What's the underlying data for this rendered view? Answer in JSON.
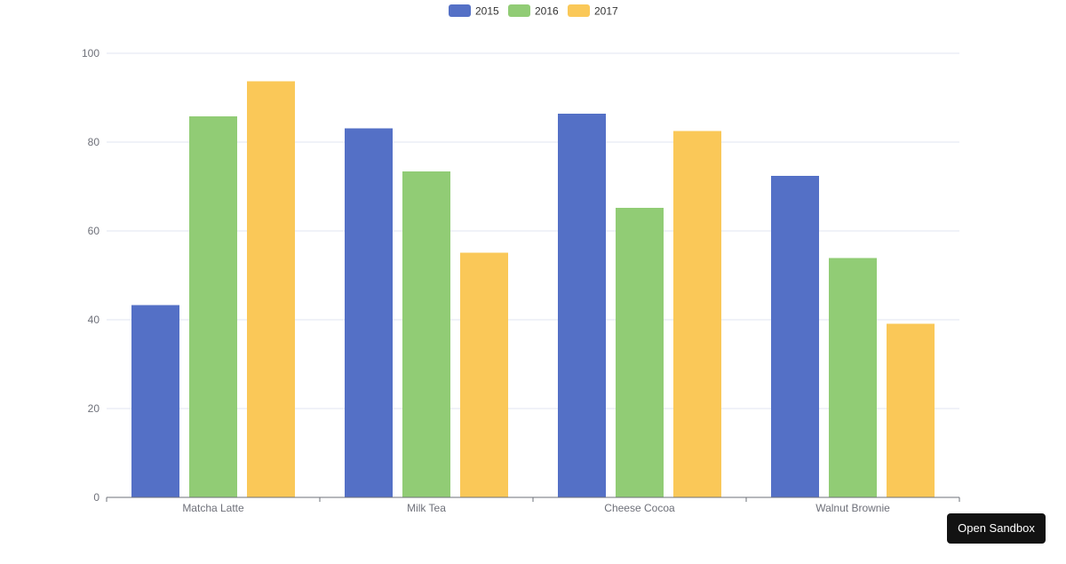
{
  "chart_data": {
    "type": "bar",
    "categories": [
      "Matcha Latte",
      "Milk Tea",
      "Cheese Cocoa",
      "Walnut Brownie"
    ],
    "series": [
      {
        "name": "2015",
        "values": [
          43.3,
          83.1,
          86.4,
          72.4
        ],
        "color": "#5470c6"
      },
      {
        "name": "2016",
        "values": [
          85.8,
          73.4,
          65.2,
          53.9
        ],
        "color": "#91cc75"
      },
      {
        "name": "2017",
        "values": [
          93.7,
          55.1,
          82.5,
          39.1
        ],
        "color": "#fac858"
      }
    ],
    "ylim": [
      0,
      100
    ],
    "yticks": [
      "0",
      "20",
      "40",
      "60",
      "80",
      "100"
    ],
    "grid": true,
    "legend_position": "top-center"
  },
  "ui": {
    "sandbox_label": "Open Sandbox"
  }
}
